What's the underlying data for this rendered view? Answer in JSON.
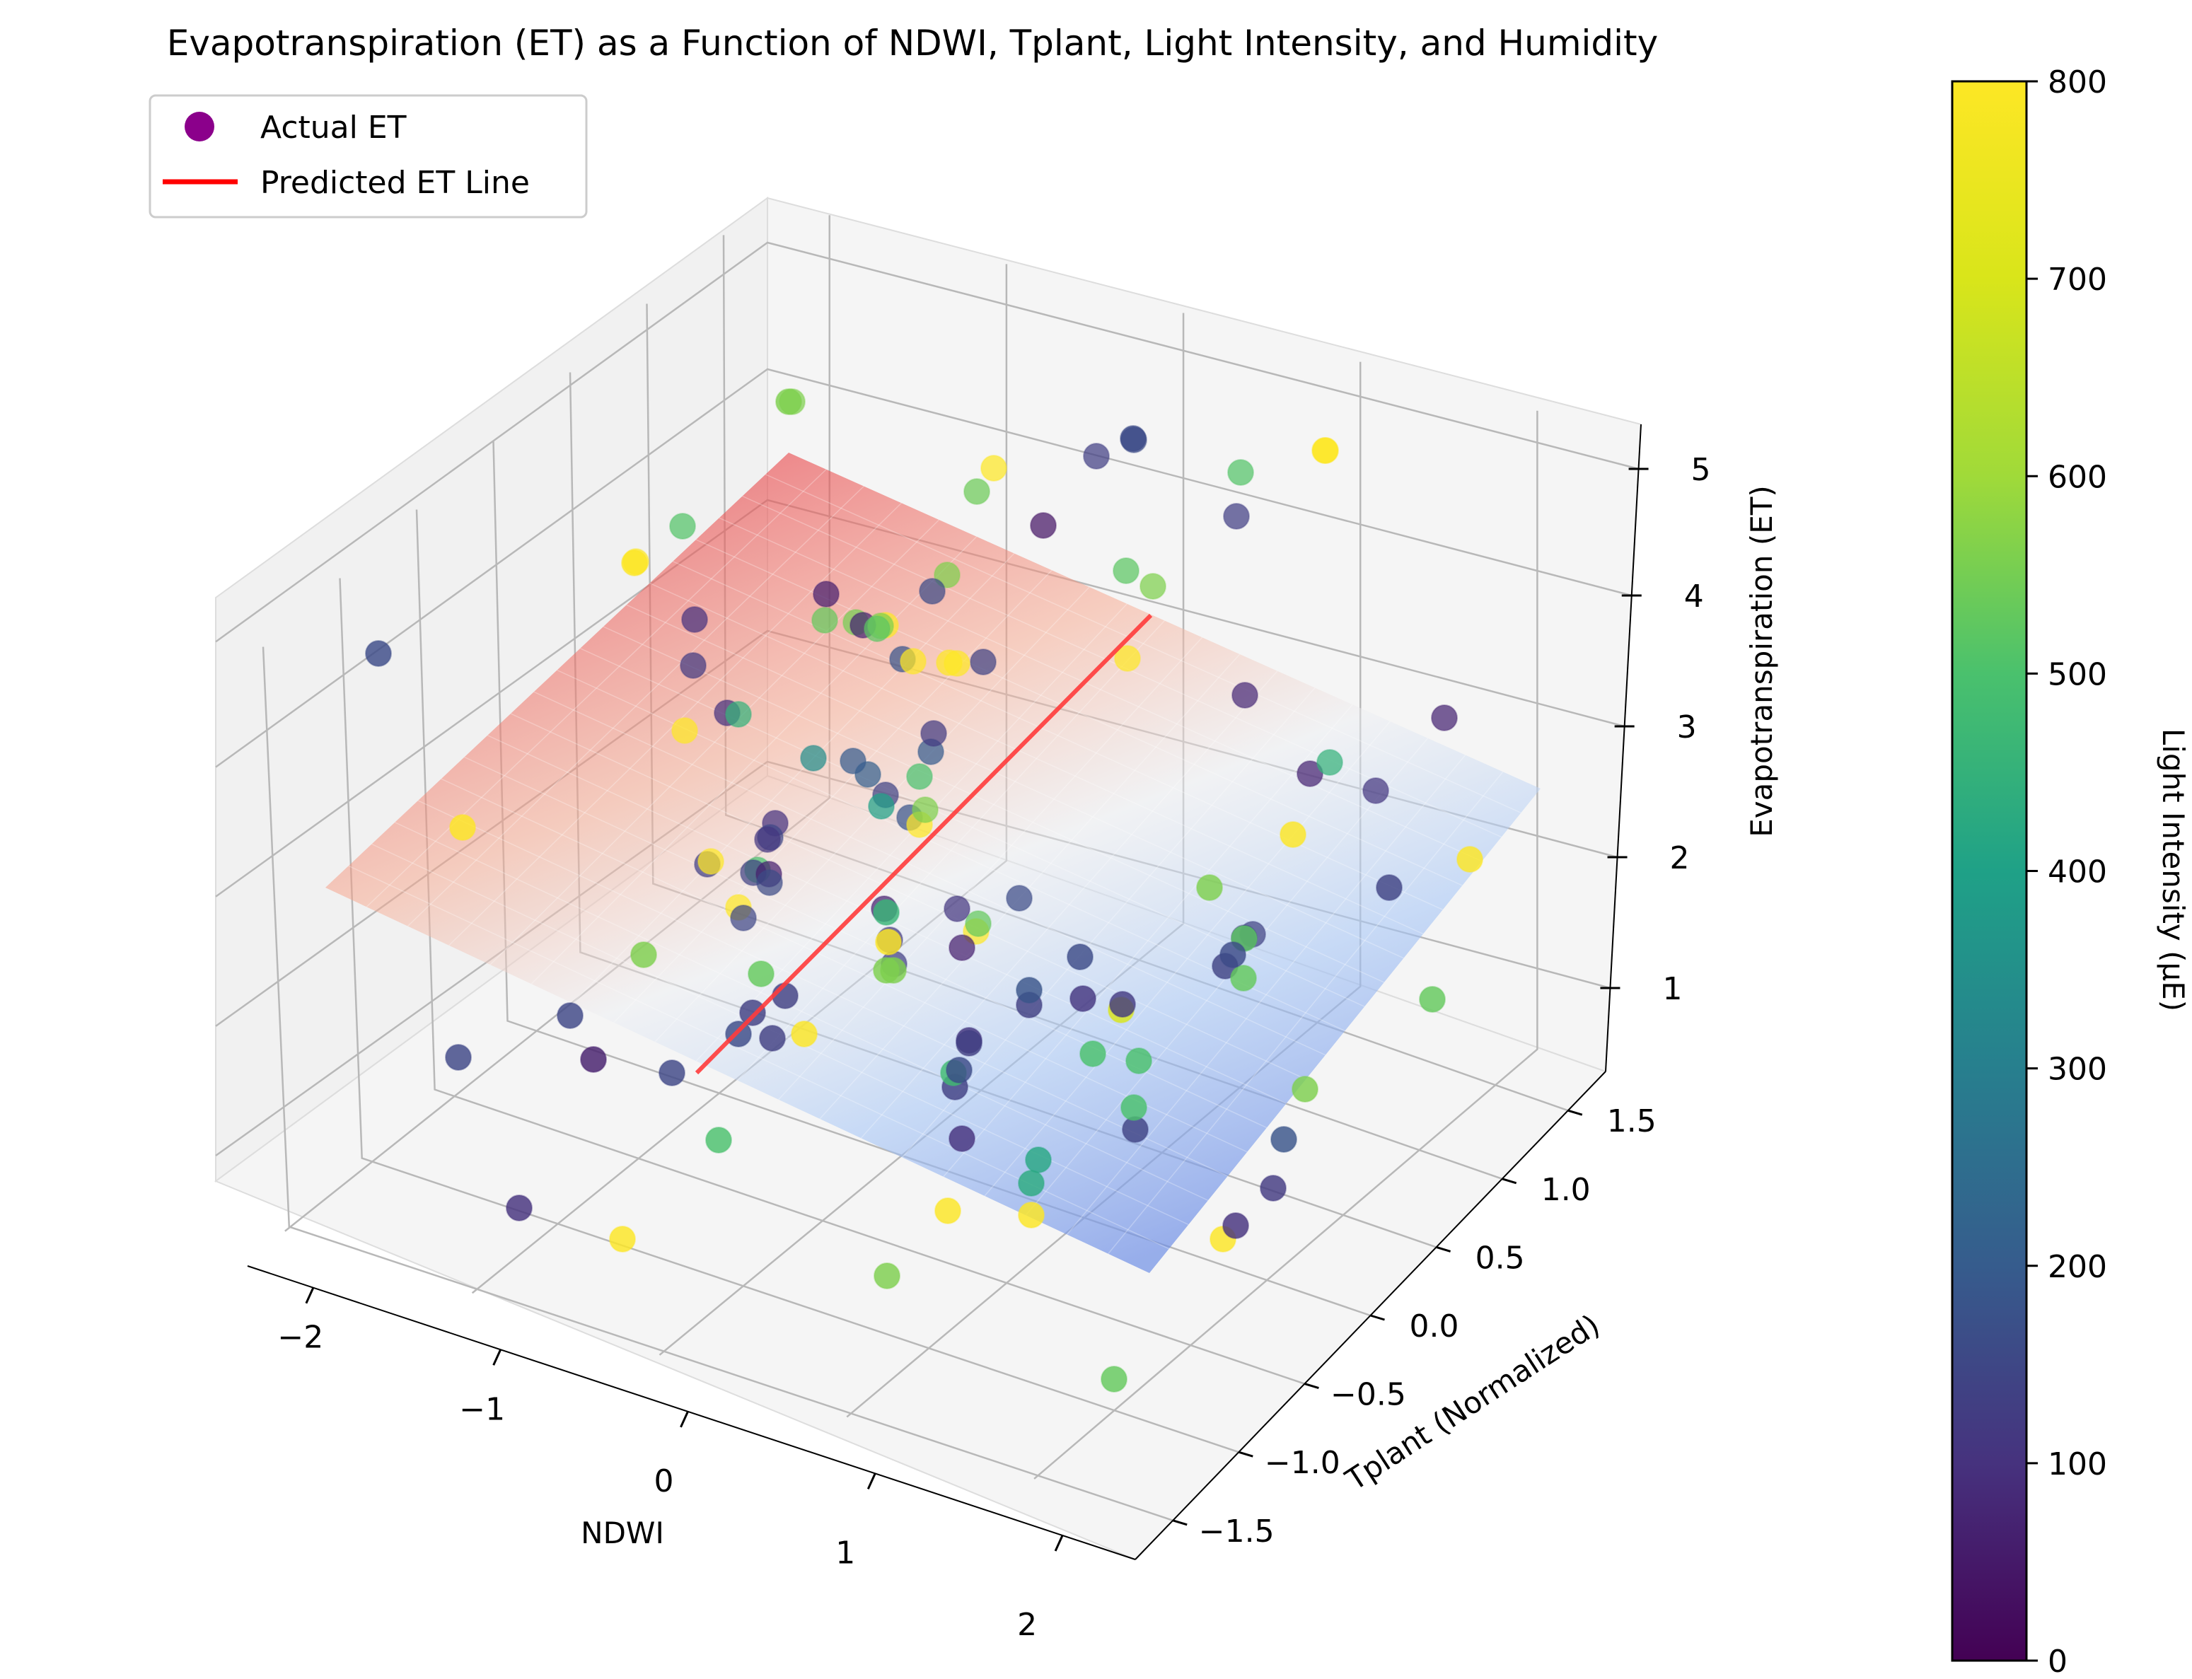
{
  "chart_data": {
    "type": "scatter3d",
    "title": "Evapotranspiration (ET) as a Function of NDWI, Tplant, Light Intensity, and Humidity",
    "xlabel": "NDWI",
    "ylabel": "Tplant (Normalized)",
    "zlabel": "Evapotranspiration (ET)",
    "xlim": [
      -2.4,
      2.4
    ],
    "ylim": [
      -1.8,
      1.8
    ],
    "zlim": [
      0.5,
      5.5
    ],
    "x_ticks": [
      "−2",
      "−1",
      "0",
      "1",
      "2"
    ],
    "y_ticks": [
      "−1.5",
      "−1.0",
      "−0.5",
      "0.0",
      "0.5",
      "1.0",
      "1.5"
    ],
    "z_ticks": [
      "1",
      "2",
      "3",
      "4",
      "5"
    ],
    "legend": {
      "placement": "top-left",
      "entries": [
        {
          "label": "Actual ET",
          "marker": "circle",
          "color": "#8b008b"
        },
        {
          "label": "Predicted ET Line",
          "marker": "line",
          "color": "#ff0000"
        }
      ]
    },
    "colorbar": {
      "label": "Light Intensity (µE)",
      "colormap": "viridis",
      "range": [
        0,
        800
      ],
      "ticks": [
        "0",
        "100",
        "200",
        "300",
        "400",
        "500",
        "600",
        "700",
        "800"
      ]
    },
    "surface": {
      "description": "fitted ET plane, coloured coolwarm by ET",
      "corner_et": {
        "ndwi_min_tplant_min": 2.0,
        "ndwi_max_tplant_min": 0.55,
        "ndwi_min_tplant_max": 5.0,
        "ndwi_max_tplant_max": 3.45
      }
    },
    "predicted_line": {
      "from_et": 1.0,
      "to_et": 4.2
    },
    "points_light_intensity": [
      560,
      160,
      510,
      40,
      800,
      130,
      540,
      520,
      800,
      130,
      510,
      800,
      560,
      100,
      800,
      120,
      560,
      160,
      60,
      800,
      550,
      70,
      180,
      560,
      140,
      800,
      800,
      530,
      520,
      800,
      80,
      800,
      100,
      450,
      200,
      500,
      120,
      210,
      200,
      340,
      140,
      180,
      400,
      800,
      560,
      100,
      150,
      110,
      130,
      800,
      500,
      140,
      60,
      160,
      800,
      150,
      60,
      800,
      60,
      130,
      120,
      110,
      160,
      530,
      110,
      140,
      70,
      70,
      450,
      110
    ]
  }
}
